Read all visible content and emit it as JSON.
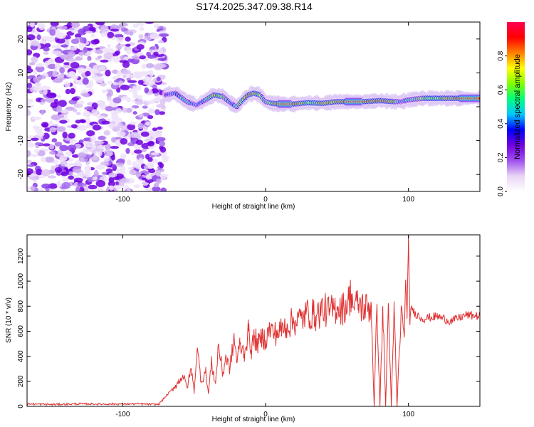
{
  "title": "S174.2025.347.09.38.R14",
  "spectrogram": {
    "type": "heatmap",
    "xlabel": "Height of straight line (km)",
    "ylabel": "Frequency (Hz)",
    "xlim": [
      -167,
      150
    ],
    "ylim": [
      -25,
      25
    ],
    "xticks": [
      -100,
      0,
      100
    ],
    "yticks": [
      -20,
      -10,
      0,
      10,
      20
    ],
    "noise_region_x": [
      -167,
      -70
    ],
    "ridge": {
      "x": [
        -70,
        -63,
        -55,
        -48,
        -42,
        -36,
        -30,
        -24,
        -20,
        -16,
        -12,
        -8,
        -4,
        0,
        5,
        10,
        20,
        30,
        40,
        50,
        60,
        70,
        80,
        90,
        95,
        100,
        110,
        120,
        130,
        140,
        150
      ],
      "f": [
        3.5,
        4.0,
        1.5,
        0.5,
        2.0,
        3.5,
        3.0,
        1.0,
        0.0,
        2.0,
        3.5,
        4.0,
        3.5,
        1.5,
        1.0,
        0.8,
        0.8,
        1.2,
        1.0,
        1.5,
        1.5,
        1.5,
        1.8,
        1.5,
        1.5,
        2.0,
        2.5,
        2.5,
        2.5,
        2.5,
        2.5
      ],
      "amp": [
        0.35,
        0.5,
        0.6,
        0.4,
        0.55,
        0.85,
        0.7,
        0.45,
        0.6,
        0.75,
        0.9,
        0.85,
        0.7,
        0.55,
        0.75,
        0.95,
        0.9,
        0.75,
        0.8,
        0.85,
        0.95,
        0.9,
        0.9,
        0.85,
        0.4,
        0.6,
        0.7,
        0.75,
        0.85,
        0.95,
        0.95
      ]
    }
  },
  "colorbar": {
    "label": "Normalized spectral amplitude",
    "range": [
      0.0,
      1.0
    ],
    "ticks": [
      "0.0",
      "0.2",
      "0.4",
      "0.6",
      "0.8"
    ],
    "colors": [
      "#ffffff",
      "#e8d5f5",
      "#a050f0",
      "#7000e0",
      "#0000ff",
      "#00c8ff",
      "#00ff80",
      "#80ff00",
      "#ffff00",
      "#ff8000",
      "#ff0000",
      "#ff0050"
    ]
  },
  "chart_data": {
    "type": "line",
    "title": "S174.2025.347.09.38.R14",
    "xlabel": "Height of straight line (km)",
    "ylabel": "SNR (10 * v/v)",
    "xlim": [
      -167,
      150
    ],
    "ylim": [
      0,
      1370
    ],
    "xticks": [
      -100,
      0,
      100
    ],
    "yticks": [
      0,
      200,
      400,
      600,
      800,
      1000,
      1200
    ],
    "color": "#e03030",
    "series": [
      {
        "name": "SNR",
        "x": [
          -167,
          -150,
          -130,
          -110,
          -90,
          -75,
          -62,
          -58,
          -55,
          -52,
          -50,
          -48,
          -45,
          -42,
          -40,
          -38,
          -35,
          -33,
          -30,
          -28,
          -25,
          -22,
          -20,
          -18,
          -15,
          -12,
          -10,
          -8,
          -5,
          -2,
          0,
          3,
          6,
          10,
          15,
          20,
          25,
          30,
          35,
          40,
          45,
          50,
          55,
          58,
          60,
          62,
          65,
          70,
          74,
          76,
          78,
          80,
          82,
          84,
          86,
          88,
          90,
          92,
          95,
          97,
          98,
          99,
          100,
          101,
          102,
          104,
          110,
          120,
          130,
          140,
          150
        ],
        "y": [
          20,
          15,
          20,
          18,
          20,
          15,
          180,
          250,
          150,
          300,
          120,
          450,
          200,
          280,
          100,
          350,
          180,
          500,
          250,
          400,
          300,
          550,
          350,
          500,
          420,
          600,
          450,
          550,
          500,
          560,
          530,
          620,
          580,
          600,
          650,
          680,
          700,
          750,
          720,
          780,
          750,
          800,
          780,
          850,
          900,
          780,
          820,
          780,
          800,
          0,
          820,
          0,
          800,
          0,
          820,
          0,
          780,
          0,
          800,
          550,
          1000,
          700,
          1370,
          650,
          800,
          750,
          700,
          720,
          680,
          730,
          720
        ]
      }
    ]
  }
}
